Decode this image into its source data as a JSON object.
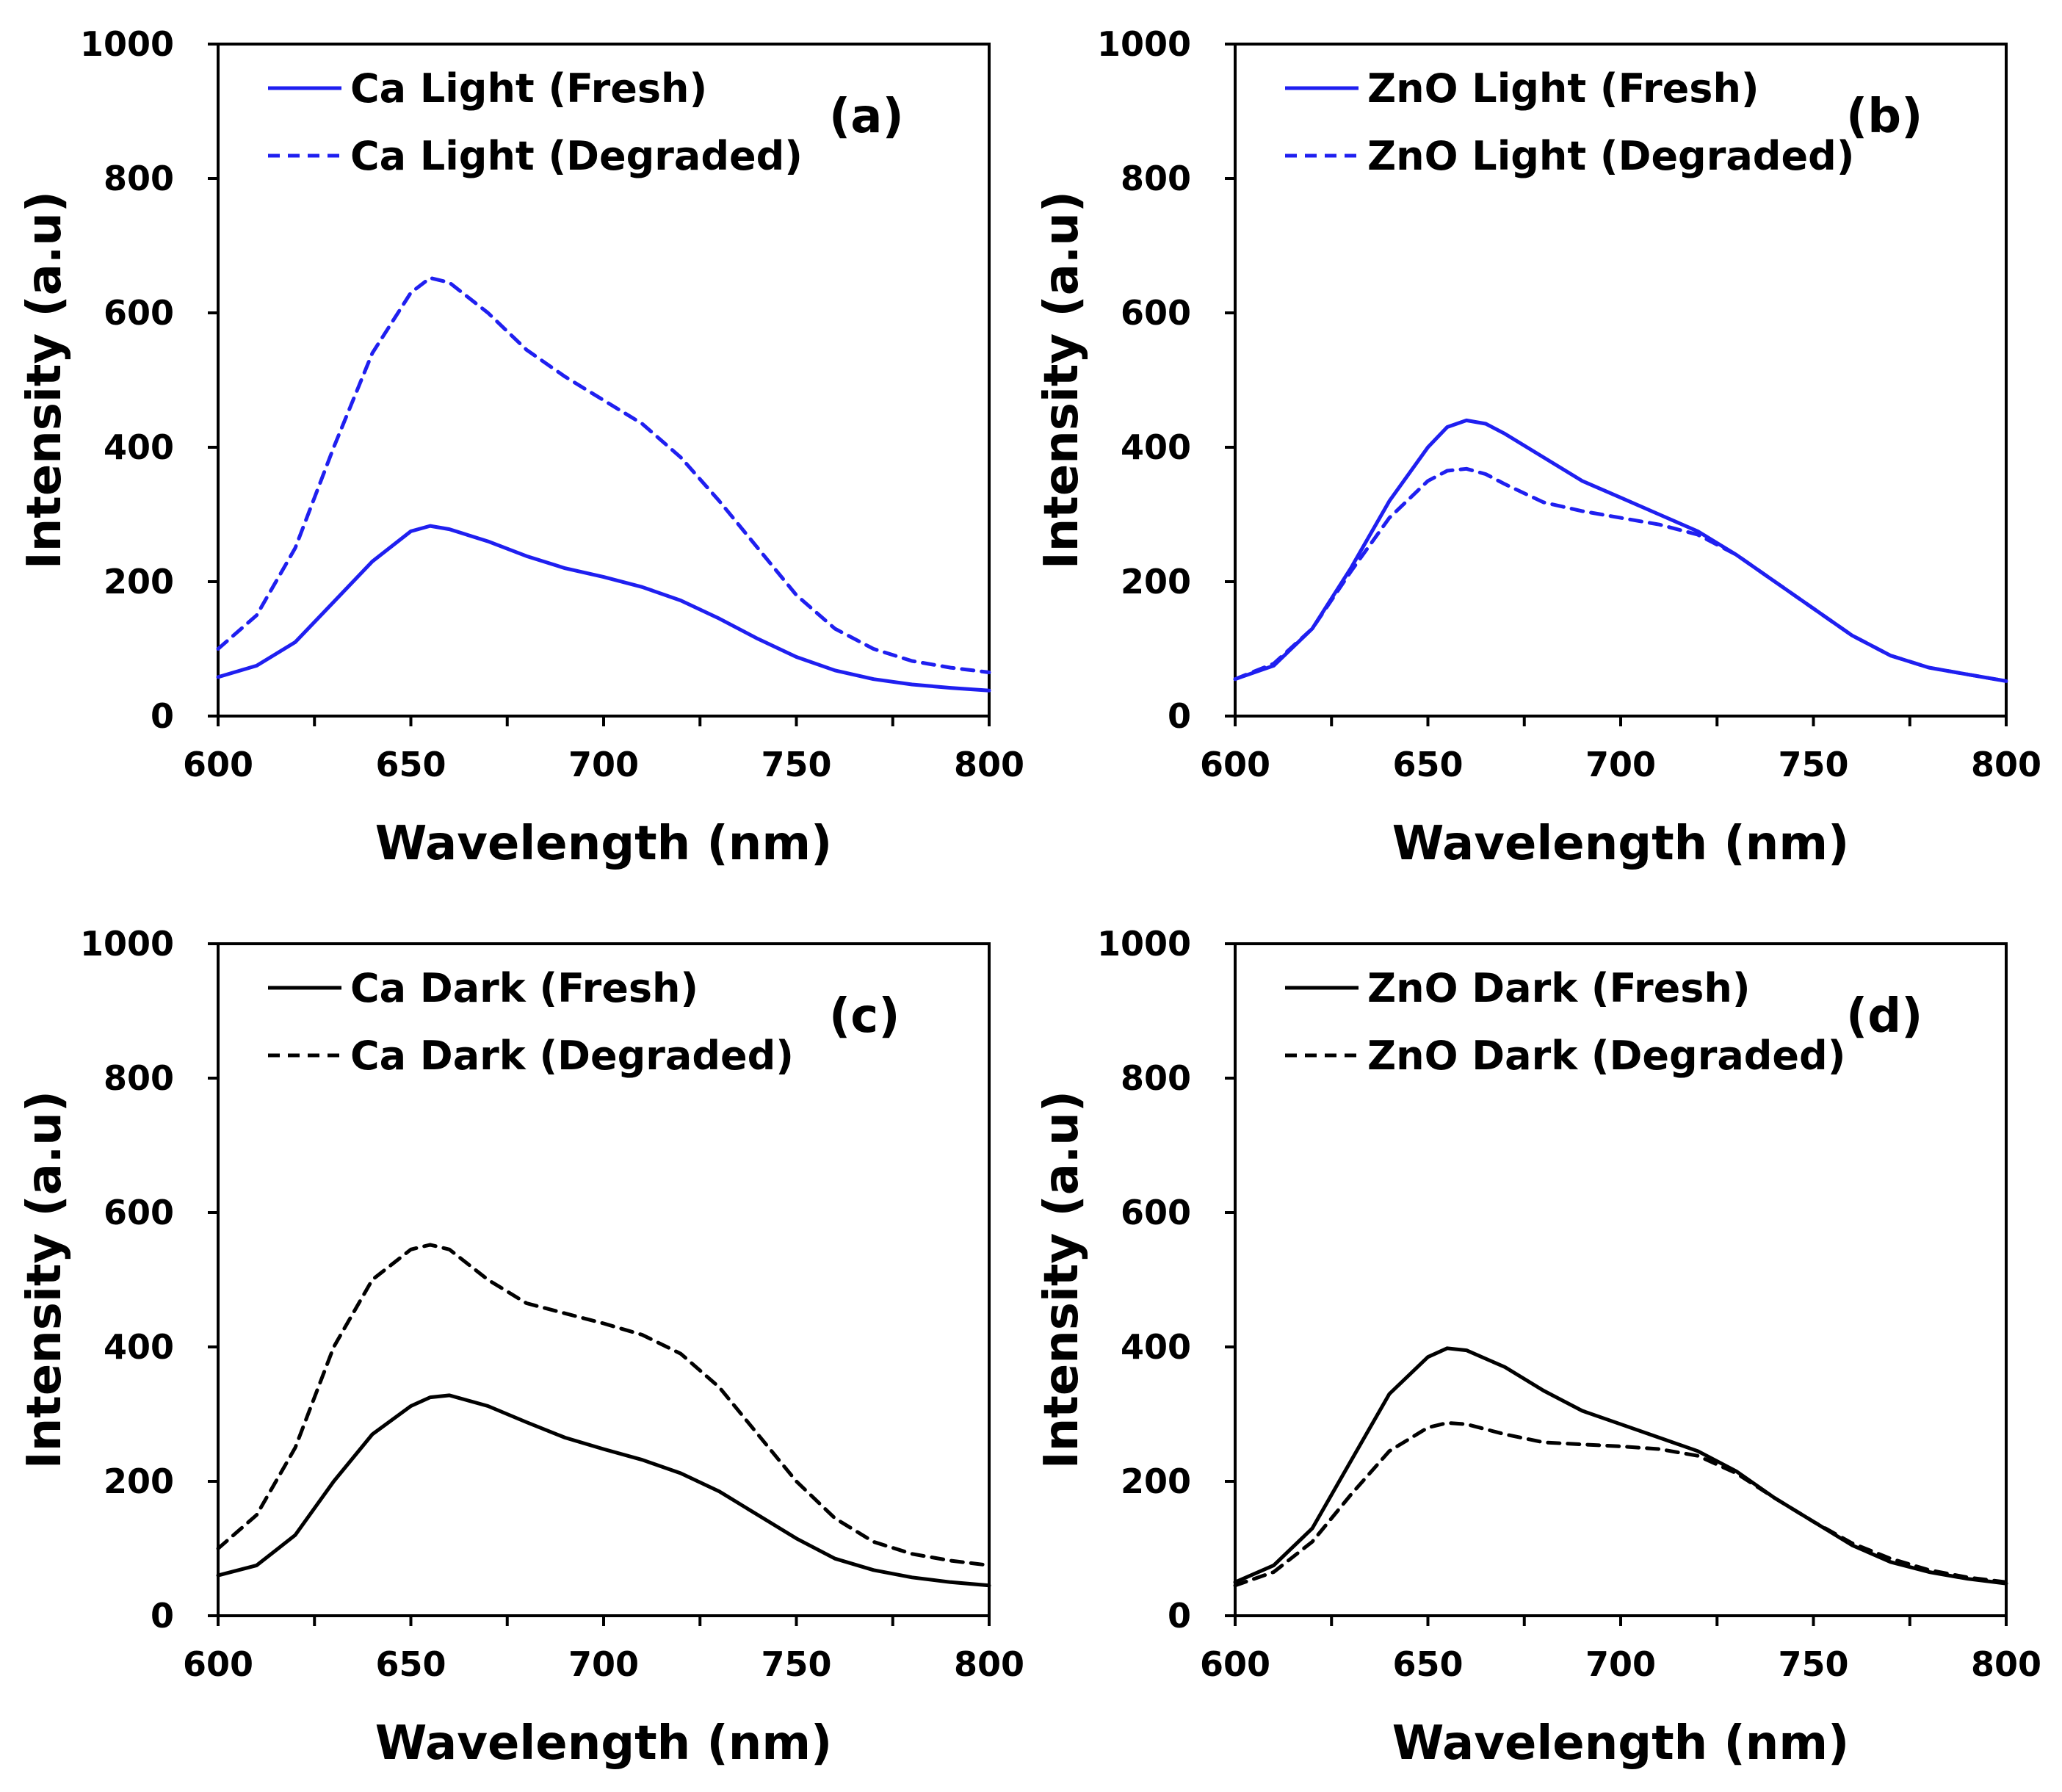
{
  "figure": {
    "colors": {
      "light": "#1f1ff0",
      "dark": "#000000"
    }
  },
  "chart_data": [
    {
      "type": "line",
      "panel_label": "(a)",
      "title": "",
      "xlabel": "Wavelength (nm)",
      "ylabel": "Intensity (a.u)",
      "xlim": [
        600,
        800
      ],
      "ylim": [
        0,
        1000
      ],
      "xticks": [
        "600",
        "650",
        "700",
        "750",
        "800"
      ],
      "yticks": [
        "0",
        "200",
        "400",
        "600",
        "800",
        "1000"
      ],
      "grid": false,
      "legend": "top-left",
      "color": "#1f1ff0",
      "x": [
        600,
        610,
        620,
        630,
        640,
        650,
        655,
        660,
        670,
        680,
        690,
        700,
        710,
        720,
        730,
        740,
        750,
        760,
        770,
        780,
        790,
        800
      ],
      "series": [
        {
          "name": "Ca Light (Fresh)",
          "style": "solid",
          "values": [
            58,
            75,
            110,
            170,
            230,
            275,
            283,
            278,
            260,
            238,
            220,
            207,
            192,
            172,
            145,
            115,
            88,
            68,
            55,
            47,
            42,
            38
          ]
        },
        {
          "name": "Ca Light (Degraded)",
          "style": "dashed",
          "values": [
            100,
            150,
            250,
            400,
            540,
            630,
            652,
            645,
            600,
            545,
            505,
            470,
            435,
            385,
            320,
            250,
            180,
            130,
            100,
            82,
            72,
            65
          ]
        }
      ]
    },
    {
      "type": "line",
      "panel_label": "(b)",
      "title": "",
      "xlabel": "Wavelength (nm)",
      "ylabel": "Intensity (a.u)",
      "xlim": [
        600,
        800
      ],
      "ylim": [
        0,
        1000
      ],
      "xticks": [
        "600",
        "650",
        "700",
        "750",
        "800"
      ],
      "yticks": [
        "0",
        "200",
        "400",
        "600",
        "800",
        "1000"
      ],
      "grid": false,
      "legend": "top-left",
      "color": "#1f1ff0",
      "x": [
        600,
        610,
        620,
        630,
        640,
        650,
        655,
        660,
        665,
        670,
        680,
        690,
        700,
        710,
        720,
        730,
        740,
        750,
        760,
        770,
        780,
        790,
        800
      ],
      "series": [
        {
          "name": "ZnO Light (Fresh)",
          "style": "solid",
          "values": [
            55,
            75,
            130,
            220,
            320,
            400,
            430,
            440,
            435,
            420,
            385,
            350,
            325,
            300,
            275,
            240,
            200,
            160,
            120,
            90,
            72,
            62,
            52
          ]
        },
        {
          "name": "ZnO Light (Degraded)",
          "style": "dashed",
          "values": [
            55,
            78,
            130,
            215,
            295,
            350,
            365,
            368,
            360,
            345,
            318,
            305,
            295,
            285,
            270,
            240,
            200,
            160,
            120,
            90,
            72,
            62,
            52
          ]
        }
      ]
    },
    {
      "type": "line",
      "panel_label": "(c)",
      "title": "",
      "xlabel": "Wavelength (nm)",
      "ylabel": "Intensity (a.u)",
      "xlim": [
        600,
        800
      ],
      "ylim": [
        0,
        1000
      ],
      "xticks": [
        "600",
        "650",
        "700",
        "750",
        "800"
      ],
      "yticks": [
        "0",
        "200",
        "400",
        "600",
        "800",
        "1000"
      ],
      "grid": false,
      "legend": "top-left",
      "color": "#000000",
      "x": [
        600,
        610,
        620,
        630,
        640,
        650,
        655,
        660,
        670,
        680,
        690,
        700,
        710,
        720,
        730,
        740,
        750,
        760,
        770,
        780,
        790,
        800
      ],
      "series": [
        {
          "name": "Ca Dark (Fresh)",
          "style": "solid",
          "values": [
            60,
            75,
            120,
            200,
            270,
            312,
            325,
            328,
            312,
            288,
            265,
            248,
            232,
            212,
            185,
            150,
            115,
            85,
            68,
            57,
            50,
            45
          ]
        },
        {
          "name": "Ca Dark (Degraded)",
          "style": "dashed",
          "values": [
            100,
            150,
            250,
            400,
            500,
            545,
            552,
            545,
            500,
            465,
            450,
            435,
            418,
            390,
            340,
            270,
            200,
            145,
            110,
            92,
            82,
            75
          ]
        }
      ]
    },
    {
      "type": "line",
      "panel_label": "(d)",
      "title": "",
      "xlabel": "Wavelength (nm)",
      "ylabel": "Intensity (a.u)",
      "xlim": [
        600,
        800
      ],
      "ylim": [
        0,
        1000
      ],
      "xticks": [
        "600",
        "650",
        "700",
        "750",
        "800"
      ],
      "yticks": [
        "0",
        "200",
        "400",
        "600",
        "800",
        "1000"
      ],
      "grid": false,
      "legend": "top-left",
      "color": "#000000",
      "x": [
        600,
        610,
        620,
        630,
        640,
        650,
        655,
        660,
        670,
        680,
        690,
        700,
        710,
        720,
        730,
        740,
        750,
        760,
        770,
        780,
        790,
        800
      ],
      "series": [
        {
          "name": "ZnO Dark (Fresh)",
          "style": "solid",
          "values": [
            50,
            75,
            130,
            230,
            330,
            385,
            398,
            395,
            370,
            335,
            305,
            285,
            265,
            245,
            215,
            175,
            140,
            105,
            80,
            65,
            55,
            48
          ]
        },
        {
          "name": "ZnO Dark (Degraded)",
          "style": "dashed",
          "values": [
            45,
            65,
            110,
            180,
            245,
            280,
            287,
            285,
            270,
            258,
            255,
            252,
            248,
            238,
            212,
            175,
            140,
            108,
            85,
            68,
            57,
            50
          ]
        }
      ]
    }
  ]
}
